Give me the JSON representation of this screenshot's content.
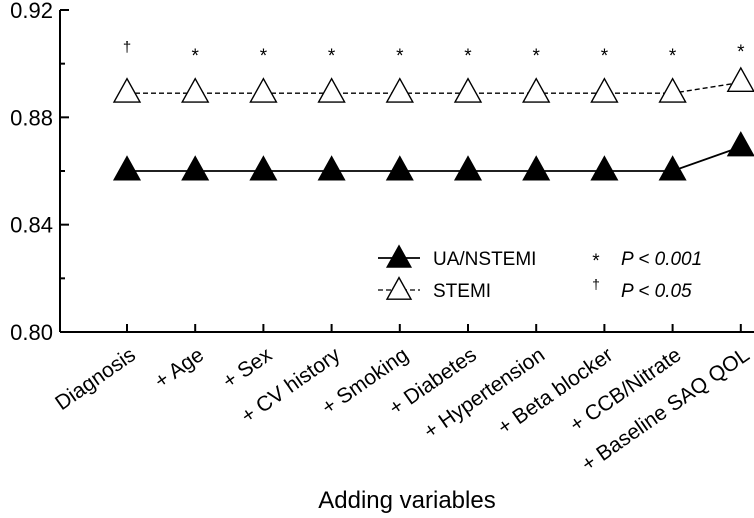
{
  "chart_data": {
    "type": "line",
    "xlabel": "Adding variables",
    "ylabel": "",
    "ylim": [
      0.8,
      0.92
    ],
    "yticks": [
      "0.80",
      "0.84",
      "0.88",
      "0.92"
    ],
    "categories": [
      "Diagnosis",
      "+ Age",
      "+ Sex",
      "+ CV history",
      "+ Smoking",
      "+ Diabetes",
      "+ Hypertension",
      "+ Beta blocker",
      "+ CCB/Nitrate",
      "+ Baseline SAQ QOL"
    ],
    "series": [
      {
        "name": "UA/NSTEMI",
        "marker": "filled-triangle",
        "line": "solid",
        "values": [
          0.86,
          0.86,
          0.86,
          0.86,
          0.86,
          0.86,
          0.86,
          0.86,
          0.86,
          0.869
        ]
      },
      {
        "name": "STEMI",
        "marker": "open-triangle",
        "line": "dashed",
        "values": [
          0.889,
          0.889,
          0.889,
          0.889,
          0.889,
          0.889,
          0.889,
          0.889,
          0.889,
          0.893
        ]
      }
    ],
    "significance_marks": [
      "†",
      "*",
      "*",
      "*",
      "*",
      "*",
      "*",
      "*",
      "*",
      "*"
    ],
    "significance_legend": [
      {
        "symbol": "*",
        "text": "P < 0.001"
      },
      {
        "symbol": "†",
        "text": "P < 0.05"
      }
    ],
    "legend_position": "bottom-right",
    "grid": false
  }
}
